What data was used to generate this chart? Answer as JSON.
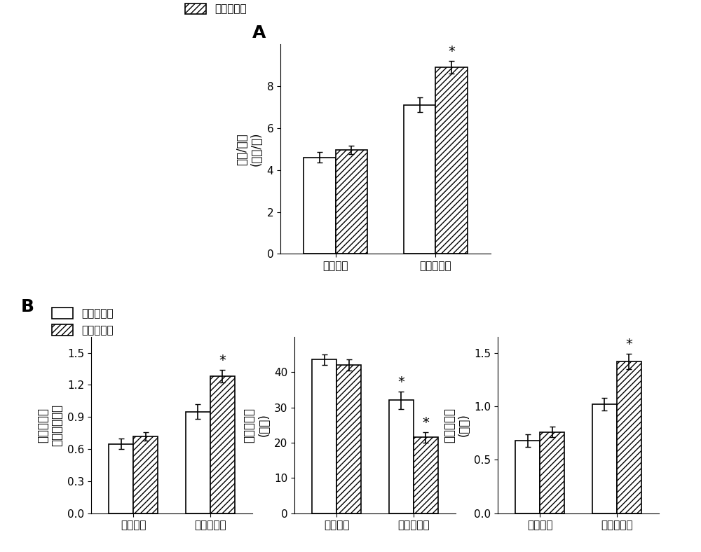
{
  "panel_A": {
    "ylabel_line1": "心脏/体重",
    "ylabel_line2": "(毫克/克)",
    "xlabel_groups": [
      "生理盐水",
      "苯肆上腺素"
    ],
    "wt_values": [
      4.6,
      7.1
    ],
    "tg_values": [
      4.95,
      8.9
    ],
    "wt_errors": [
      0.25,
      0.35
    ],
    "tg_errors": [
      0.2,
      0.3
    ],
    "ylim": [
      0,
      10
    ],
    "yticks": [
      0,
      2,
      4,
      6,
      8
    ],
    "sig_tg": [
      false,
      true
    ],
    "sig_wt": [
      false,
      false
    ]
  },
  "panel_B1": {
    "ylabel_line1": "左心室后壁",
    "ylabel_line2": "厉度（毫米）",
    "xlabel_groups": [
      "生理盐水",
      "苯肆上腺素"
    ],
    "wt_values": [
      0.65,
      0.95
    ],
    "tg_values": [
      0.72,
      1.28
    ],
    "wt_errors": [
      0.05,
      0.07
    ],
    "tg_errors": [
      0.04,
      0.06
    ],
    "ylim": [
      0,
      1.65
    ],
    "yticks": [
      0,
      0.3,
      0.6,
      0.9,
      1.2,
      1.5
    ],
    "sig_tg": [
      false,
      true
    ],
    "sig_wt": [
      false,
      false
    ]
  },
  "panel_B2": {
    "ylabel_line1": "短轴缩短率",
    "ylabel_line2": "(尺单)",
    "xlabel_groups": [
      "生理盐水",
      "苯肆上腺素"
    ],
    "wt_values": [
      43.5,
      32.0
    ],
    "tg_values": [
      42.0,
      21.5
    ],
    "wt_errors": [
      1.5,
      2.5
    ],
    "tg_errors": [
      1.5,
      1.5
    ],
    "ylim": [
      0,
      50
    ],
    "yticks": [
      0,
      10,
      20,
      30,
      40
    ],
    "sig_tg": [
      false,
      true
    ],
    "sig_wt": [
      false,
      true
    ]
  },
  "panel_B3": {
    "ylabel_line1": "室间隔厉度",
    "ylabel_line2": "(毫米)",
    "xlabel_groups": [
      "生理盐水",
      "苯肆上腺素"
    ],
    "wt_values": [
      0.68,
      1.02
    ],
    "tg_values": [
      0.76,
      1.42
    ],
    "wt_errors": [
      0.06,
      0.06
    ],
    "tg_errors": [
      0.05,
      0.07
    ],
    "ylim": [
      0,
      1.65
    ],
    "yticks": [
      0,
      0.5,
      1.0,
      1.5
    ],
    "sig_tg": [
      false,
      true
    ],
    "sig_wt": [
      false,
      false
    ]
  },
  "legend_wt": "野生型小鼠",
  "legend_tg": "转基因小鼠",
  "bar_width": 0.32,
  "edgecolor": "black",
  "fontsize": 12,
  "label_fontsize": 11,
  "tick_fontsize": 11,
  "star_fontsize": 14
}
